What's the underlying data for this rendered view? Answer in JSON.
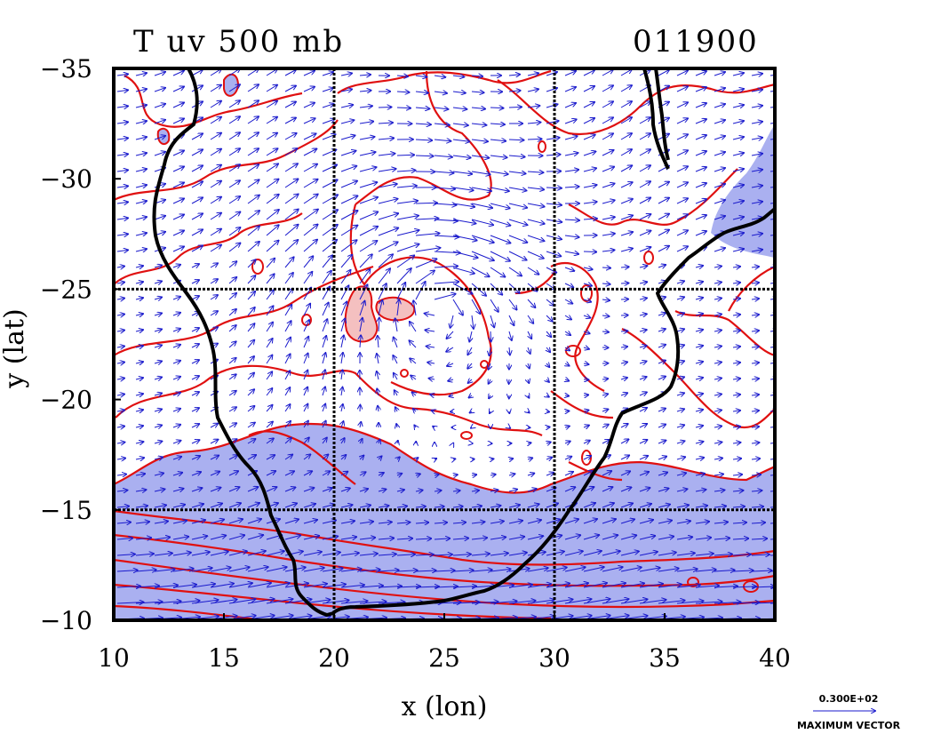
{
  "title": {
    "left": "T uv 500 mb",
    "right": "011900"
  },
  "axes": {
    "x_label": "x (lon)",
    "y_label": "y (lat)",
    "x_ticks": [
      "10",
      "15",
      "20",
      "25",
      "30",
      "35",
      "40"
    ],
    "y_ticks": [
      "−35",
      "−30",
      "−25",
      "−20",
      "−15",
      "−10"
    ],
    "x_range": [
      10,
      40
    ],
    "y_range": [
      -35,
      -10
    ]
  },
  "grid_lines": {
    "lon": [
      20,
      30
    ],
    "lat": [
      -25,
      -15
    ]
  },
  "vector_legend": {
    "value": "0.300E+02",
    "label": "MAXIMUM VECTOR"
  },
  "colors": {
    "contour": "#e01010",
    "vector": "#1a1acc",
    "shade_blue": "#aab0f0",
    "shade_red": "#f4c0c0",
    "coastline": "#000000"
  }
}
